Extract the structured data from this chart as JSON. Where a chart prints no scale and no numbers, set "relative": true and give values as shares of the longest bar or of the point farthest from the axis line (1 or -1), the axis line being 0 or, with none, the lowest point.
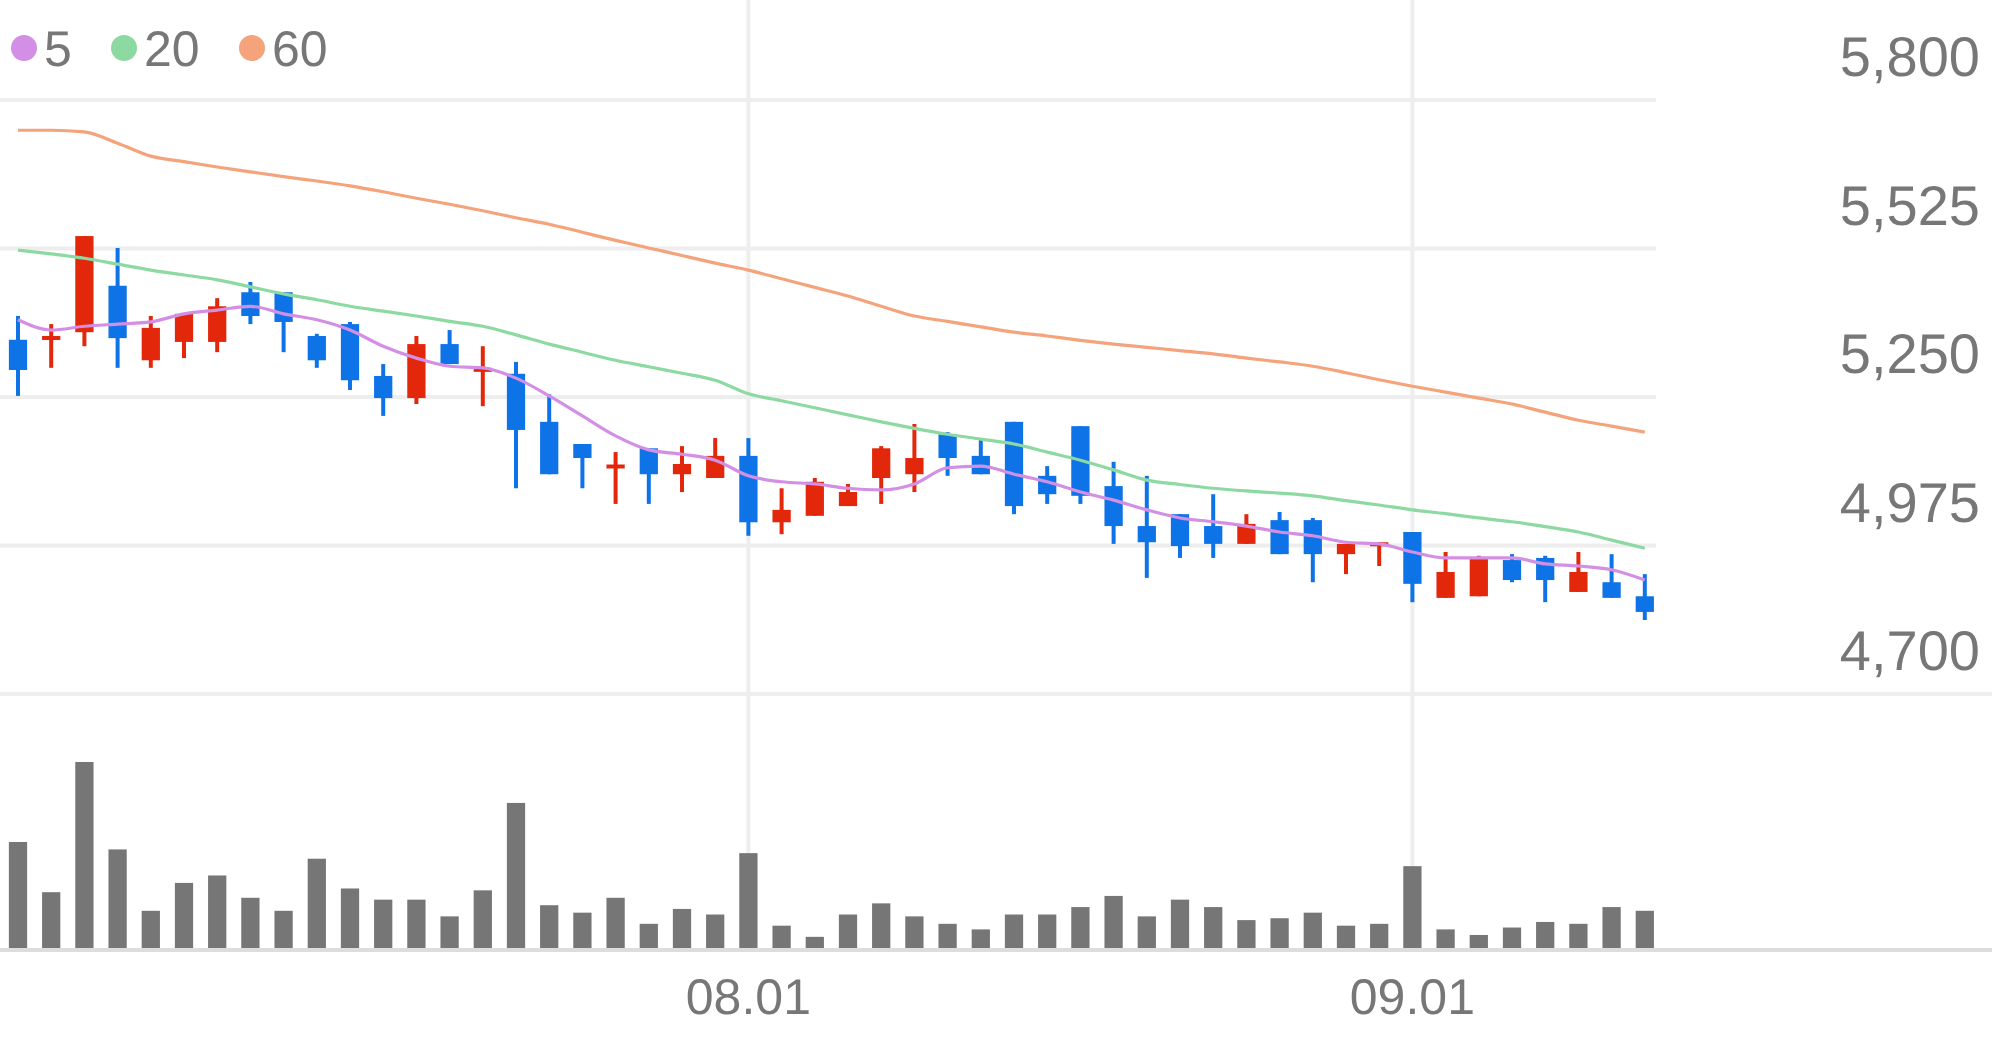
{
  "chart_data": [
    {
      "type": "candlestick",
      "categories": [
        null,
        null,
        null,
        null,
        null,
        null,
        null,
        null,
        null,
        null,
        null,
        null,
        null,
        null,
        null,
        null,
        null,
        null,
        null,
        null,
        null,
        null,
        "08.01",
        null,
        null,
        null,
        null,
        null,
        null,
        null,
        null,
        null,
        null,
        null,
        null,
        null,
        null,
        null,
        null,
        null,
        null,
        null,
        "09.01",
        null,
        null,
        null,
        null,
        null,
        null,
        null
      ],
      "ohlc": [
        [
          5356,
          5400,
          5252,
          5300
        ],
        [
          5360,
          5385,
          5304,
          5363
        ],
        [
          5370,
          5548,
          5344,
          5548
        ],
        [
          5456,
          5526,
          5304,
          5359
        ],
        [
          5318,
          5400,
          5304,
          5378
        ],
        [
          5352,
          5404,
          5322,
          5404
        ],
        [
          5352,
          5433,
          5333,
          5418
        ],
        [
          5444,
          5463,
          5385,
          5400
        ],
        [
          5444,
          5444,
          5333,
          5389
        ],
        [
          5363,
          5367,
          5304,
          5318
        ],
        [
          5385,
          5389,
          5263,
          5281
        ],
        [
          5289,
          5311,
          5215,
          5248
        ],
        [
          5248,
          5363,
          5237,
          5348
        ],
        [
          5348,
          5374,
          5311,
          5311
        ],
        [
          5300,
          5344,
          5233,
          5304
        ],
        [
          5293,
          5315,
          5081,
          5189
        ],
        [
          5204,
          5255,
          5107,
          5107
        ],
        [
          5163,
          5163,
          5081,
          5137
        ],
        [
          5120,
          5148,
          5052,
          5125
        ],
        [
          5155,
          5155,
          5052,
          5107
        ],
        [
          5107,
          5159,
          5074,
          5126
        ],
        [
          5100,
          5174,
          5100,
          5141
        ],
        [
          5141,
          5174,
          4993,
          5018
        ],
        [
          5018,
          5081,
          4996,
          5041
        ],
        [
          5030,
          5100,
          5030,
          5093
        ],
        [
          5048,
          5089,
          5048,
          5074
        ],
        [
          5100,
          5159,
          5052,
          5155
        ],
        [
          5107,
          5200,
          5074,
          5137
        ],
        [
          5181,
          5185,
          5104,
          5137
        ],
        [
          5141,
          5174,
          5107,
          5107
        ],
        [
          5204,
          5204,
          5033,
          5048
        ],
        [
          5104,
          5122,
          5052,
          5070
        ],
        [
          5196,
          5196,
          5052,
          5067
        ],
        [
          5085,
          5130,
          4978,
          5011
        ],
        [
          5011,
          5104,
          4915,
          4981
        ],
        [
          5033,
          5033,
          4952,
          4974
        ],
        [
          5011,
          5070,
          4952,
          4978
        ],
        [
          4978,
          5033,
          4978,
          5015
        ],
        [
          5022,
          5037,
          4959,
          4959
        ],
        [
          5022,
          5026,
          4907,
          4959
        ],
        [
          4959,
          4978,
          4922,
          4978
        ],
        [
          4974,
          4981,
          4937,
          4981
        ],
        [
          5000,
          5000,
          4870,
          4904
        ],
        [
          4878,
          4963,
          4878,
          4926
        ],
        [
          4881,
          4956,
          4881,
          4952
        ],
        [
          4948,
          4959,
          4907,
          4911
        ],
        [
          4952,
          4956,
          4870,
          4911
        ],
        [
          4889,
          4963,
          4889,
          4926
        ],
        [
          4907,
          4959,
          4878,
          4878
        ],
        [
          4881,
          4922,
          4837,
          4852
        ]
      ],
      "colors": [
        "#0f73e8",
        "#e2270a",
        "#e2270a",
        "#0f73e8",
        "#e2270a",
        "#e2270a",
        "#e2270a",
        "#0f73e8",
        "#0f73e8",
        "#0f73e8",
        "#0f73e8",
        "#0f73e8",
        "#e2270a",
        "#0f73e8",
        "#e2270a",
        "#0f73e8",
        "#0f73e8",
        "#0f73e8",
        "#e2270a",
        "#0f73e8",
        "#e2270a",
        "#e2270a",
        "#0f73e8",
        "#e2270a",
        "#e2270a",
        "#e2270a",
        "#e2270a",
        "#e2270a",
        "#0f73e8",
        "#0f73e8",
        "#0f73e8",
        "#0f73e8",
        "#0f73e8",
        "#0f73e8",
        "#0f73e8",
        "#0f73e8",
        "#0f73e8",
        "#e2270a",
        "#0f73e8",
        "#0f73e8",
        "#e2270a",
        "#e2270a",
        "#0f73e8",
        "#e2270a",
        "#e2270a",
        "#0f73e8",
        "#0f73e8",
        "#e2270a",
        "#0f73e8",
        "#0f73e8"
      ],
      "series": [
        {
          "type": "line",
          "name": "5",
          "color": "#d38fe6",
          "values": [
            5393,
            5374,
            5381,
            5385,
            5389,
            5404,
            5411,
            5418,
            5404,
            5393,
            5374,
            5344,
            5322,
            5307,
            5304,
            5285,
            5252,
            5215,
            5178,
            5152,
            5144,
            5133,
            5104,
            5093,
            5089,
            5081,
            5078,
            5089,
            5119,
            5122,
            5107,
            5093,
            5074,
            5059,
            5041,
            5026,
            5019,
            5011,
            5000,
            4993,
            4981,
            4978,
            4963,
            4952,
            4952,
            4952,
            4941,
            4937,
            4930,
            4911
          ]
        },
        {
          "type": "line",
          "name": "20",
          "color": "#8dd9a2",
          "values": [
            5522,
            5515,
            5507,
            5496,
            5485,
            5476,
            5467,
            5454,
            5441,
            5430,
            5418,
            5409,
            5400,
            5390,
            5381,
            5365,
            5348,
            5333,
            5318,
            5306,
            5294,
            5281,
            5256,
            5243,
            5230,
            5217,
            5204,
            5192,
            5181,
            5172,
            5163,
            5148,
            5133,
            5115,
            5096,
            5088,
            5081,
            5076,
            5072,
            5067,
            5058,
            5050,
            5041,
            5034,
            5026,
            5019,
            5010,
            5000,
            4985,
            4970
          ]
        },
        {
          "type": "line",
          "name": "60",
          "color": "#f4a37b",
          "values": [
            5744,
            5744,
            5741,
            5720,
            5696,
            5686,
            5676,
            5667,
            5658,
            5650,
            5641,
            5630,
            5618,
            5607,
            5595,
            5582,
            5570,
            5555,
            5540,
            5526,
            5512,
            5498,
            5485,
            5469,
            5453,
            5437,
            5418,
            5400,
            5390,
            5380,
            5370,
            5363,
            5355,
            5348,
            5342,
            5336,
            5330,
            5322,
            5315,
            5307,
            5295,
            5282,
            5270,
            5259,
            5248,
            5237,
            5222,
            5207,
            5196,
            5185
          ]
        }
      ],
      "ylim": [
        4700,
        5800
      ],
      "yticks": [
        {
          "value": 4700,
          "label": "4,700"
        },
        {
          "value": 4975,
          "label": "4,975"
        },
        {
          "value": 5250,
          "label": "5,250"
        },
        {
          "value": 5525,
          "label": "5,525"
        },
        {
          "value": 5800,
          "label": "5,800"
        }
      ],
      "grid": true,
      "legend": "top left",
      "tick_labels": "y"
    },
    {
      "type": "bar",
      "relative": true,
      "categories": [
        null,
        null,
        null,
        null,
        null,
        null,
        null,
        null,
        null,
        null,
        null,
        null,
        null,
        null,
        null,
        null,
        null,
        null,
        null,
        null,
        null,
        null,
        "08.01",
        null,
        null,
        null,
        null,
        null,
        null,
        null,
        null,
        null,
        null,
        null,
        null,
        null,
        null,
        null,
        null,
        null,
        null,
        null,
        "09.01",
        null,
        null,
        null,
        null,
        null,
        null,
        null
      ],
      "values": [
        0.57,
        0.3,
        1,
        0.53,
        0.2,
        0.35,
        0.39,
        0.27,
        0.2,
        0.48,
        0.32,
        0.26,
        0.26,
        0.17,
        0.31,
        0.78,
        0.23,
        0.19,
        0.27,
        0.13,
        0.21,
        0.18,
        0.51,
        0.12,
        0.06,
        0.18,
        0.24,
        0.17,
        0.13,
        0.1,
        0.18,
        0.18,
        0.22,
        0.28,
        0.17,
        0.26,
        0.22,
        0.15,
        0.16,
        0.19,
        0.12,
        0.13,
        0.44,
        0.1,
        0.07,
        0.11,
        0.14,
        0.13,
        0.22,
        0.2
      ],
      "color": "#767676",
      "grid": true,
      "tick_labels": "x"
    }
  ]
}
